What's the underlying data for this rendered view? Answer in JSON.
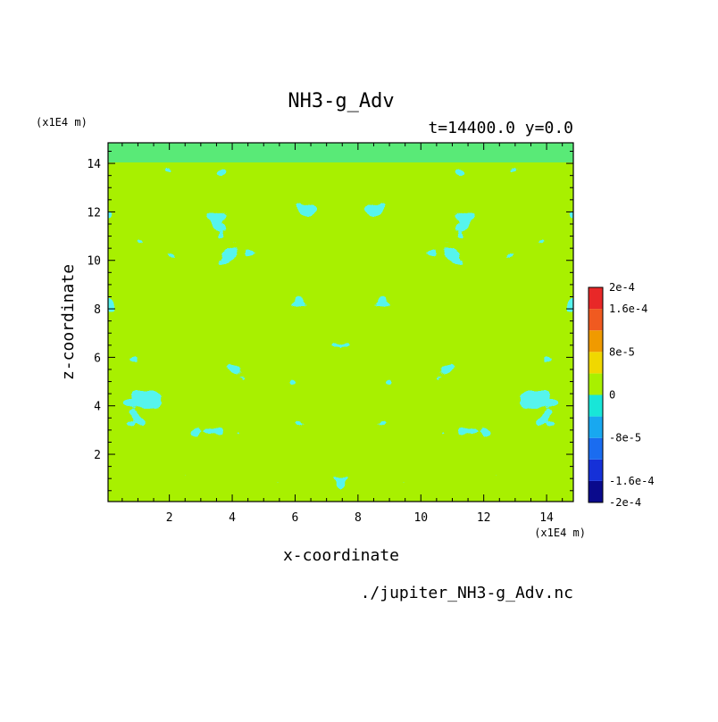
{
  "chart_data": {
    "type": "heatmap",
    "title": "NH3-g_Adv",
    "subtitle": "t=14400.0 y=0.0",
    "xlabel": "x-coordinate",
    "ylabel": "z-coordinate",
    "x_unit": "(x1E4 m)",
    "y_unit": "(x1E4 m)",
    "footer": "./jupiter_NH3-g_Adv.nc",
    "xlim": [
      0.05,
      14.85
    ],
    "ylim": [
      0.05,
      14.85
    ],
    "x_ticks": [
      "2",
      "4",
      "6",
      "8",
      "10",
      "12",
      "14"
    ],
    "y_ticks": [
      "2",
      "4",
      "6",
      "8",
      "10",
      "12",
      "14"
    ],
    "colorbar": {
      "levels": [
        -0.0002,
        -0.00016,
        -0.00012,
        -8e-05,
        -4e-05,
        0,
        4e-05,
        8e-05,
        0.00012,
        0.00016,
        0.0002
      ],
      "colors": [
        "#0a0a8c",
        "#1530d8",
        "#1a6cf0",
        "#18a8f0",
        "#18e6d8",
        "#a8f000",
        "#f0d800",
        "#f09a00",
        "#f05a20",
        "#e82828"
      ],
      "labels": [
        {
          "text": "2e-4",
          "value": 0.0002
        },
        {
          "text": "1.6e-4",
          "value": 0.00016
        },
        {
          "text": "8e-5",
          "value": 8e-05
        },
        {
          "text": "0",
          "value": 0
        },
        {
          "text": "-8e-5",
          "value": -8e-05
        },
        {
          "text": "-1.6e-4",
          "value": -0.00016
        },
        {
          "text": "-2e-4",
          "value": -0.0002
        }
      ]
    },
    "field_values_visible": [
      "-4e-5 to 0",
      "0 to 4e-5"
    ]
  }
}
